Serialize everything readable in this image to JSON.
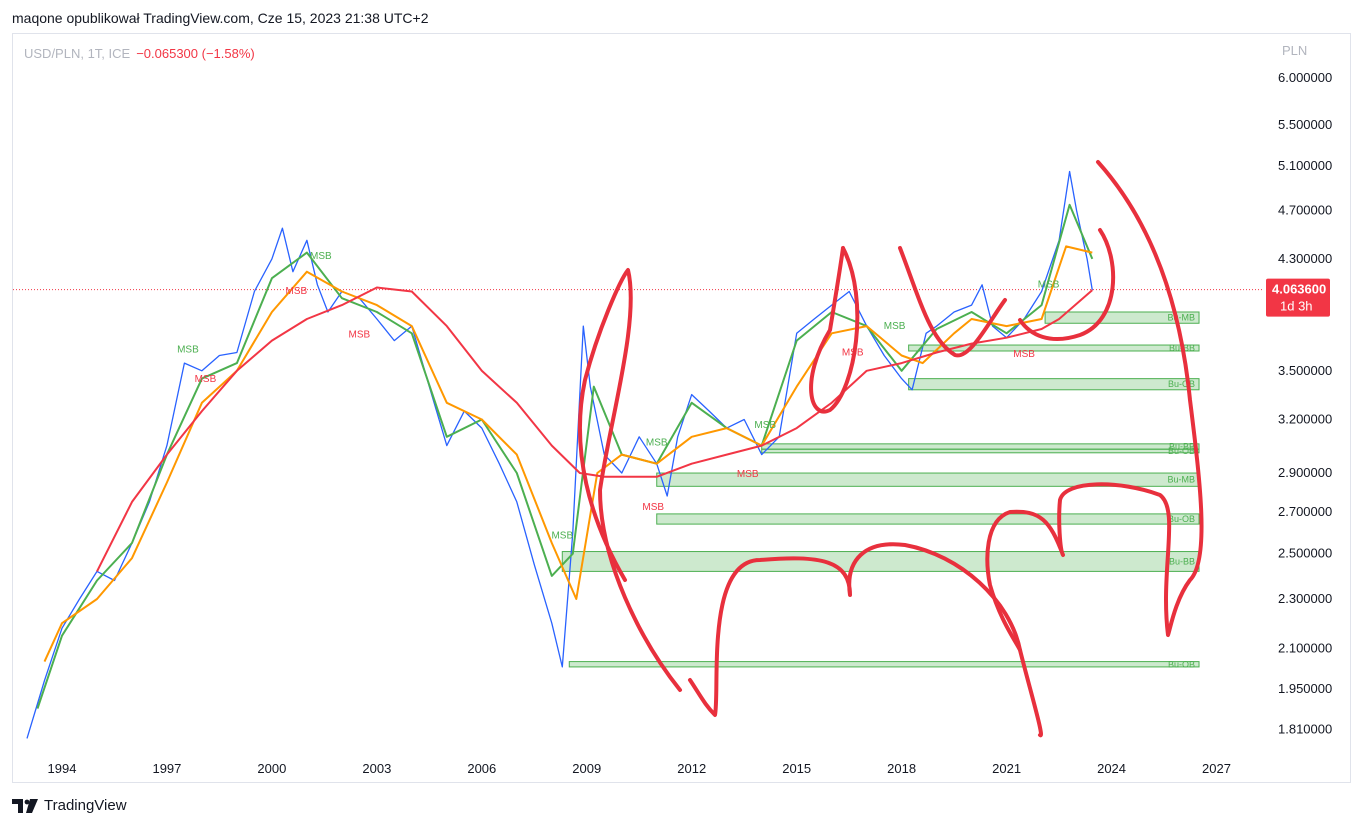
{
  "header": {
    "publisher": "maqone opublikował TradingView.com, Cze 15, 2023 21:38 UTC+2"
  },
  "legend": {
    "symbol": "USD/PLN, 1T, ICE",
    "change": "−0.065300 (−1.58%)"
  },
  "footer": {
    "brand": "TradingView"
  },
  "chart_data": {
    "type": "line",
    "symbol": "USD/PLN",
    "currency_label": "PLN",
    "last_price_label": "4.063600",
    "countdown_label": "1d 3h",
    "last_price": 4.0636,
    "y_ticks": [
      "6.000000",
      "5.500000",
      "5.100000",
      "4.700000",
      "4.300000",
      "3.500000",
      "3.200000",
      "2.900000",
      "2.700000",
      "2.500000",
      "2.300000",
      "2.100000",
      "1.950000",
      "1.810000"
    ],
    "x_ticks": [
      "1994",
      "1997",
      "2000",
      "2003",
      "2006",
      "2009",
      "2012",
      "2015",
      "2018",
      "2021",
      "2024",
      "2027"
    ],
    "ylim": [
      1.72,
      6.2
    ],
    "xlim": [
      1992.6,
      2028.3
    ],
    "y_scale": "log",
    "series": [
      {
        "color": "#2962ff",
        "x": [
          1993.0,
          1993.5,
          1994.0,
          1994.5,
          1995.0,
          1995.5,
          1996.0,
          1996.5,
          1997.0,
          1997.5,
          1998.0,
          1998.5,
          1999.0,
          1999.5,
          2000.0,
          2000.3,
          2000.6,
          2001.0,
          2001.3,
          2001.6,
          2002.0,
          2002.5,
          2003.0,
          2003.5,
          2004.0,
          2004.5,
          2005.0,
          2005.5,
          2006.0,
          2006.5,
          2007.0,
          2007.5,
          2008.0,
          2008.3,
          2008.6,
          2008.9,
          2009.1,
          2009.5,
          2010.0,
          2010.5,
          2011.0,
          2011.3,
          2011.6,
          2012.0,
          2012.5,
          2013.0,
          2013.5,
          2014.0,
          2014.5,
          2015.0,
          2015.5,
          2016.0,
          2016.5,
          2017.0,
          2017.5,
          2018.0,
          2018.3,
          2018.7,
          2019.0,
          2019.5,
          2020.0,
          2020.3,
          2020.6,
          2021.0,
          2021.5,
          2022.0,
          2022.5,
          2022.8,
          2023.0,
          2023.3,
          2023.45
        ],
        "y": [
          1.78,
          1.98,
          2.18,
          2.3,
          2.42,
          2.38,
          2.55,
          2.75,
          3.05,
          3.55,
          3.5,
          3.6,
          3.62,
          4.05,
          4.3,
          4.55,
          4.2,
          4.45,
          4.1,
          3.9,
          4.05,
          4.0,
          3.85,
          3.7,
          3.8,
          3.4,
          3.05,
          3.25,
          3.15,
          2.95,
          2.75,
          2.45,
          2.2,
          2.03,
          2.6,
          3.8,
          3.4,
          3.0,
          2.9,
          3.1,
          2.95,
          2.78,
          3.1,
          3.35,
          3.25,
          3.15,
          3.2,
          3.0,
          3.1,
          3.75,
          3.85,
          3.95,
          4.05,
          3.8,
          3.6,
          3.45,
          3.38,
          3.75,
          3.8,
          3.9,
          3.95,
          4.1,
          3.8,
          3.72,
          3.85,
          4.05,
          4.45,
          5.05,
          4.7,
          4.3,
          4.06
        ]
      },
      {
        "color": "#4caf50",
        "x": [
          1993.3,
          1994.0,
          1995.0,
          1996.0,
          1997.0,
          1998.0,
          1999.0,
          2000.0,
          2001.0,
          2002.0,
          2003.0,
          2004.0,
          2005.0,
          2006.0,
          2007.0,
          2008.0,
          2008.6,
          2009.2,
          2010.0,
          2011.0,
          2012.0,
          2013.0,
          2014.0,
          2015.0,
          2016.0,
          2017.0,
          2018.0,
          2019.0,
          2020.0,
          2021.0,
          2022.0,
          2022.8,
          2023.45
        ],
        "y": [
          1.88,
          2.15,
          2.38,
          2.55,
          3.0,
          3.45,
          3.55,
          4.15,
          4.35,
          4.0,
          3.9,
          3.75,
          3.1,
          3.2,
          2.9,
          2.4,
          2.5,
          3.4,
          3.0,
          2.95,
          3.3,
          3.15,
          3.05,
          3.7,
          3.9,
          3.8,
          3.5,
          3.78,
          3.9,
          3.75,
          3.95,
          4.75,
          4.3
        ]
      },
      {
        "color": "#ff9800",
        "x": [
          1993.5,
          1994.0,
          1995.0,
          1996.0,
          1997.0,
          1998.0,
          1999.0,
          2000.0,
          2001.0,
          2002.0,
          2003.0,
          2004.0,
          2005.0,
          2006.0,
          2007.0,
          2008.0,
          2008.7,
          2009.3,
          2010.0,
          2011.0,
          2012.0,
          2013.0,
          2014.0,
          2015.0,
          2016.0,
          2017.0,
          2018.0,
          2018.6,
          2019.5,
          2020.0,
          2021.0,
          2022.0,
          2022.7,
          2023.45
        ],
        "y": [
          2.05,
          2.2,
          2.3,
          2.48,
          2.85,
          3.3,
          3.5,
          3.9,
          4.2,
          4.05,
          3.95,
          3.8,
          3.3,
          3.2,
          3.0,
          2.55,
          2.3,
          2.9,
          3.0,
          2.95,
          3.1,
          3.15,
          3.05,
          3.4,
          3.75,
          3.8,
          3.6,
          3.55,
          3.75,
          3.85,
          3.8,
          3.85,
          4.4,
          4.35
        ]
      },
      {
        "color": "#f23645",
        "x": [
          1995.0,
          1996.0,
          1997.0,
          1998.0,
          1999.0,
          2000.0,
          2001.0,
          2002.0,
          2003.0,
          2004.0,
          2005.0,
          2006.0,
          2007.0,
          2008.0,
          2008.8,
          2009.5,
          2010.0,
          2011.0,
          2012.0,
          2013.0,
          2014.0,
          2015.0,
          2016.0,
          2017.0,
          2018.0,
          2019.0,
          2020.0,
          2021.0,
          2022.0,
          2022.5,
          2023.45
        ],
        "y": [
          2.42,
          2.75,
          3.0,
          3.25,
          3.5,
          3.7,
          3.85,
          3.95,
          4.08,
          4.05,
          3.8,
          3.5,
          3.3,
          3.05,
          2.9,
          2.88,
          2.88,
          2.88,
          2.95,
          3.0,
          3.05,
          3.15,
          3.3,
          3.5,
          3.55,
          3.62,
          3.68,
          3.72,
          3.78,
          3.85,
          4.06
        ]
      }
    ],
    "zones": [
      {
        "label": "Bu-MB",
        "x0": 2022.1,
        "x1": 2026.5,
        "y0": 3.82,
        "y1": 3.9
      },
      {
        "label": "Bu-BB",
        "x0": 2018.2,
        "x1": 2026.5,
        "y0": 3.63,
        "y1": 3.67
      },
      {
        "label": "Bu-OB",
        "x0": 2018.2,
        "x1": 2026.5,
        "y0": 3.38,
        "y1": 3.45
      },
      {
        "label": "Bu-BB",
        "x0": 2014.0,
        "x1": 2026.5,
        "y0": 3.03,
        "y1": 3.06
      },
      {
        "label": "Bu-OB",
        "x0": 2014.0,
        "x1": 2026.5,
        "y0": 3.01,
        "y1": 3.03
      },
      {
        "label": "Bu-MB",
        "x0": 2011.0,
        "x1": 2026.5,
        "y0": 2.83,
        "y1": 2.9
      },
      {
        "label": "Bu-OB",
        "x0": 2011.0,
        "x1": 2026.5,
        "y0": 2.64,
        "y1": 2.69
      },
      {
        "label": "Bu-BB",
        "x0": 2008.3,
        "x1": 2026.5,
        "y0": 2.42,
        "y1": 2.51
      },
      {
        "label": "Bu-OB",
        "x0": 2008.5,
        "x1": 2026.5,
        "y0": 2.03,
        "y1": 2.05
      }
    ],
    "annotations": [
      {
        "text": "MSB",
        "x": 1997.6,
        "y": 3.62,
        "color": "#4caf50"
      },
      {
        "text": "MSB",
        "x": 1998.1,
        "y": 3.43,
        "color": "#f23645"
      },
      {
        "text": "MSB",
        "x": 2001.4,
        "y": 4.3,
        "color": "#4caf50"
      },
      {
        "text": "MSB",
        "x": 2000.7,
        "y": 4.03,
        "color": "#f23645"
      },
      {
        "text": "MSB",
        "x": 2002.5,
        "y": 3.72,
        "color": "#f23645"
      },
      {
        "text": "MSB",
        "x": 2008.3,
        "y": 2.57,
        "color": "#4caf50"
      },
      {
        "text": "MSB",
        "x": 2011.0,
        "y": 3.05,
        "color": "#4caf50"
      },
      {
        "text": "MSB",
        "x": 2010.9,
        "y": 2.71,
        "color": "#f23645"
      },
      {
        "text": "MSB",
        "x": 2013.6,
        "y": 2.88,
        "color": "#f23645"
      },
      {
        "text": "MSB",
        "x": 2014.1,
        "y": 3.15,
        "color": "#4caf50"
      },
      {
        "text": "MSB",
        "x": 2017.8,
        "y": 3.78,
        "color": "#4caf50"
      },
      {
        "text": "MSB",
        "x": 2016.6,
        "y": 3.6,
        "color": "#f23645"
      },
      {
        "text": "MSB",
        "x": 2022.2,
        "y": 4.08,
        "color": "#4caf50"
      },
      {
        "text": "MSB",
        "x": 2021.5,
        "y": 3.59,
        "color": "#f23645"
      }
    ]
  }
}
